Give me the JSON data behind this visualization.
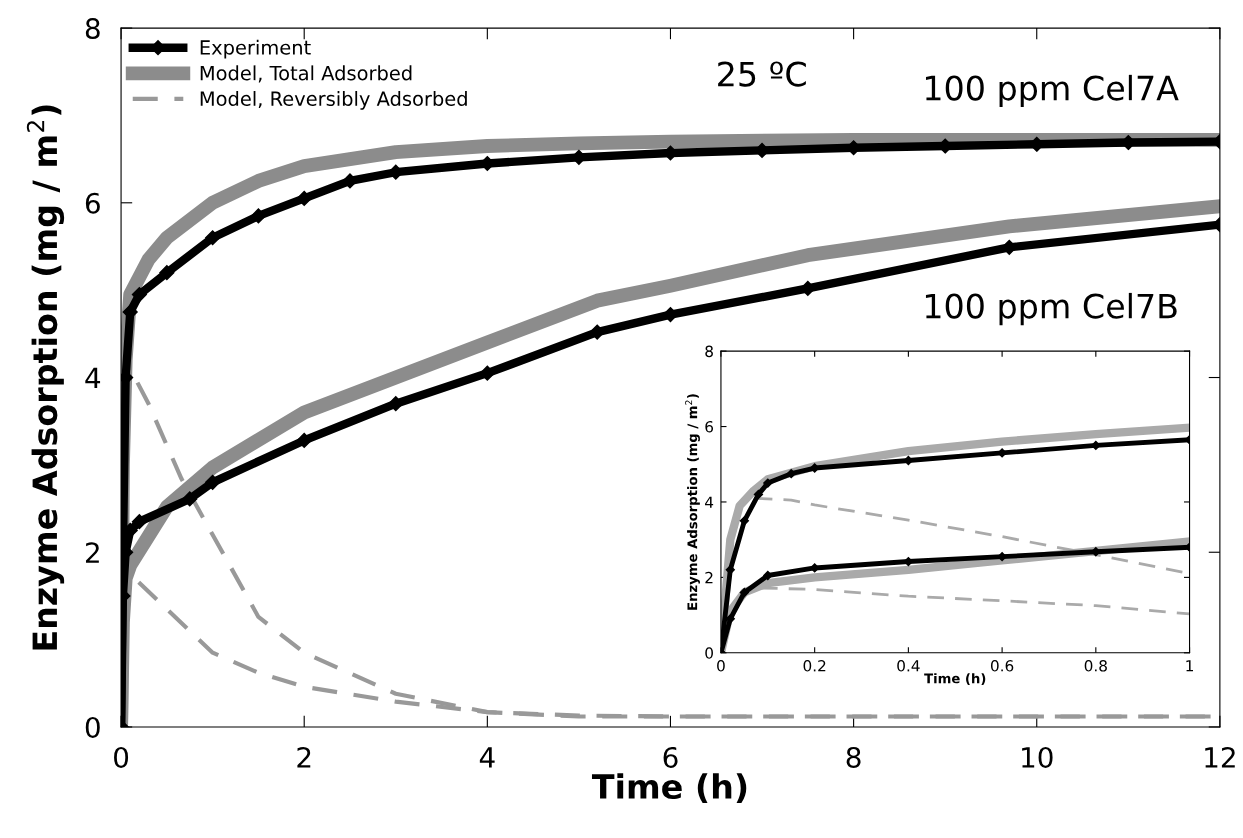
{
  "chart_data": [
    {
      "type": "line",
      "xlabel": "Time (h)",
      "ylabel": "Enzyme Adsorption (mg / m$^{2}$)",
      "xlim": [
        0,
        12
      ],
      "xticks": [
        0,
        2,
        4,
        6,
        8,
        10,
        12
      ],
      "ylim": [
        0,
        8
      ],
      "yticks": [
        0,
        2,
        4,
        6,
        8
      ],
      "grid": false,
      "legend": "top left",
      "annotations": [
        "25 ºC",
        "100 ppm Cel7A",
        "100 ppm Cel7B"
      ],
      "series": [
        {
          "name": "Experiment",
          "color": "#000000",
          "marker": "diamond",
          "line_style": "solid",
          "x": [
            0,
            0.02,
            0.05,
            0.1,
            0.2,
            0.5,
            1,
            1.5,
            2,
            2.5,
            3,
            4,
            5,
            6,
            7,
            8,
            9,
            10,
            11,
            12
          ],
          "values": [
            0,
            2.0,
            4.0,
            4.75,
            4.95,
            5.2,
            5.6,
            5.85,
            6.05,
            6.25,
            6.35,
            6.45,
            6.52,
            6.57,
            6.6,
            6.63,
            6.65,
            6.67,
            6.69,
            6.7
          ]
        },
        {
          "name": "Model, Total Adsorbed",
          "color": "#8c8c8c",
          "line_style": "solid",
          "x": [
            0,
            0.02,
            0.05,
            0.1,
            0.3,
            0.5,
            1,
            1.5,
            2,
            3,
            4,
            5,
            6,
            8,
            10,
            12
          ],
          "values": [
            0,
            3.0,
            4.2,
            4.95,
            5.35,
            5.6,
            6.0,
            6.25,
            6.42,
            6.58,
            6.65,
            6.68,
            6.7,
            6.72,
            6.72,
            6.72
          ]
        },
        {
          "name": "Model, Reversibly Adsorbed",
          "color": "#999999",
          "line_style": "dashed",
          "x": [
            0,
            0.02,
            0.05,
            0.1,
            0.3,
            0.66,
            1,
            1.5,
            2,
            3,
            4,
            5,
            6,
            8,
            10,
            12
          ],
          "values": [
            0,
            3.0,
            4.0,
            4.1,
            3.7,
            2.84,
            2.2,
            1.26,
            0.85,
            0.38,
            0.17,
            0.13,
            0.12,
            0.12,
            0.12,
            0.12
          ]
        },
        {
          "color": "#8c8c8c",
          "line_style": "solid",
          "x": [
            0,
            0.02,
            0.05,
            0.1,
            0.5,
            1,
            2,
            3,
            4,
            5.2,
            6,
            7.5,
            9.7,
            12
          ],
          "values": [
            0,
            1.2,
            1.7,
            1.85,
            2.52,
            2.97,
            3.6,
            4.0,
            4.4,
            4.88,
            5.05,
            5.4,
            5.73,
            5.96
          ]
        },
        {
          "color": "#999999",
          "line_style": "dashed",
          "x": [
            0,
            0.02,
            0.05,
            0.1,
            0.5,
            1,
            1.5,
            2,
            3,
            4,
            5,
            6,
            8,
            10,
            12
          ],
          "values": [
            0,
            1.2,
            1.7,
            1.75,
            1.35,
            0.85,
            0.62,
            0.46,
            0.29,
            0.17,
            0.12,
            0.12,
            0.12,
            0.12,
            0.12
          ]
        },
        {
          "color": "#000000",
          "marker": "diamond",
          "line_style": "solid",
          "x": [
            0,
            0.02,
            0.05,
            0.1,
            0.2,
            0.75,
            1,
            2,
            3,
            4,
            5.2,
            6,
            7.5,
            9.7,
            12
          ],
          "values": [
            0,
            1.5,
            2.0,
            2.25,
            2.35,
            2.61,
            2.8,
            3.28,
            3.7,
            4.05,
            4.52,
            4.72,
            5.02,
            5.49,
            5.75
          ]
        }
      ]
    },
    {
      "type": "line",
      "xlabel": "Time (h)",
      "ylabel": "Enzyme Adsorption (mg / m$^{2}$)",
      "xlim": [
        0,
        1
      ],
      "xticks": [
        0,
        0.2,
        0.4,
        0.6,
        0.8,
        1
      ],
      "ylim": [
        0,
        8
      ],
      "yticks": [
        0,
        2,
        4,
        6,
        8
      ],
      "grid": false,
      "series": [
        {
          "color": "#aaaaaa",
          "line_style": "solid",
          "x": [
            0,
            0.02,
            0.04,
            0.07,
            0.1,
            0.2,
            0.4,
            0.6,
            0.8,
            1
          ],
          "values": [
            0,
            3.0,
            3.9,
            4.3,
            4.6,
            4.95,
            5.35,
            5.6,
            5.8,
            5.97
          ]
        },
        {
          "color": "#aaaaaa",
          "line_style": "dashed",
          "x": [
            0,
            0.02,
            0.04,
            0.07,
            0.15,
            0.2,
            0.4,
            0.6,
            0.8,
            1
          ],
          "values": [
            0,
            3.0,
            3.9,
            4.1,
            4.05,
            3.92,
            3.52,
            3.08,
            2.6,
            2.1
          ]
        },
        {
          "color": "#000000",
          "marker": "diamond",
          "line_style": "solid",
          "x": [
            0,
            0.02,
            0.05,
            0.08,
            0.1,
            0.15,
            0.2,
            0.4,
            0.6,
            0.8,
            1
          ],
          "values": [
            0,
            2.2,
            3.5,
            4.2,
            4.5,
            4.75,
            4.9,
            5.1,
            5.3,
            5.5,
            5.65
          ]
        },
        {
          "color": "#aaaaaa",
          "line_style": "solid",
          "x": [
            0,
            0.02,
            0.05,
            0.1,
            0.2,
            0.4,
            0.6,
            0.8,
            1
          ],
          "values": [
            0,
            1.1,
            1.6,
            1.85,
            2.0,
            2.2,
            2.45,
            2.7,
            2.95
          ]
        },
        {
          "color": "#aaaaaa",
          "line_style": "dashed",
          "x": [
            0,
            0.02,
            0.05,
            0.08,
            0.2,
            0.4,
            0.6,
            0.8,
            1
          ],
          "values": [
            0,
            1.1,
            1.6,
            1.72,
            1.68,
            1.5,
            1.38,
            1.25,
            1.03
          ]
        },
        {
          "color": "#000000",
          "marker": "diamond",
          "line_style": "solid",
          "x": [
            0,
            0.02,
            0.05,
            0.1,
            0.2,
            0.4,
            0.6,
            0.8,
            1
          ],
          "values": [
            0,
            0.9,
            1.6,
            2.05,
            2.25,
            2.42,
            2.55,
            2.68,
            2.8
          ]
        }
      ]
    }
  ]
}
